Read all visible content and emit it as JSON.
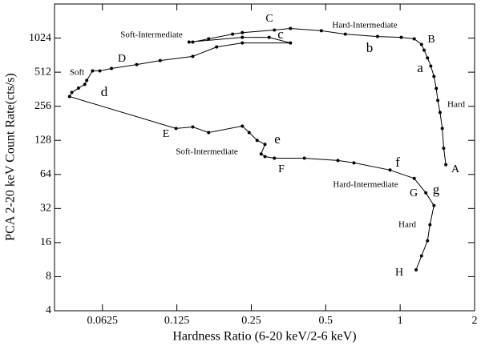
{
  "chart_data": {
    "type": "line",
    "xlabel": "Hardness Ratio (6-20 keV/2-6 keV)",
    "ylabel": "PCA 2-20 keV Count Rate(cts/s)",
    "xscale": "log",
    "yscale": "log",
    "xlim": [
      0.04,
      2
    ],
    "ylim": [
      4,
      2048
    ],
    "xticks": [
      0.0625,
      0.125,
      0.25,
      0.5,
      1,
      2
    ],
    "yticks": [
      4,
      8,
      16,
      32,
      64,
      128,
      256,
      512,
      1024
    ],
    "series": [
      {
        "color": "#000000",
        "x": [
          1.53,
          1.5,
          1.48,
          1.45,
          1.42,
          1.4,
          1.37,
          1.33,
          1.29,
          1.25,
          1.22,
          1.14,
          1.01,
          0.81,
          0.6,
          0.48,
          0.36,
          0.31,
          0.23,
          0.21,
          0.168,
          0.145,
          0.14,
          0.23,
          0.295,
          0.36,
          0.23,
          0.181,
          0.145,
          0.107,
          0.086,
          0.068,
          0.061,
          0.057,
          0.054,
          0.053,
          0.05,
          0.047,
          0.046,
          0.124,
          0.145,
          0.168,
          0.23,
          0.245,
          0.264,
          0.284,
          0.274,
          0.284,
          0.31,
          0.41,
          0.56,
          0.65,
          0.91,
          1.14,
          1.27,
          1.37,
          1.32,
          1.29,
          1.22,
          1.16
        ],
        "values": [
          78,
          109,
          163,
          226,
          288,
          368,
          470,
          580,
          684,
          801,
          900,
          1008,
          1040,
          1058,
          1110,
          1188,
          1247,
          1207,
          1144,
          1110,
          1008,
          944,
          944,
          1040,
          1040,
          928,
          928,
          855,
          706,
          648,
          598,
          552,
          526,
          526,
          433,
          399,
          370,
          339,
          312,
          163,
          168,
          150,
          171,
          150,
          128,
          118,
          97,
          92,
          89,
          89,
          85,
          81,
          70,
          59,
          44,
          34,
          23,
          16.6,
          12.2,
          9.2
        ]
      }
    ],
    "annotations": [
      "A",
      "B",
      "C",
      "D",
      "E",
      "F",
      "G",
      "H",
      "a",
      "b",
      "c",
      "d",
      "e",
      "f",
      "g",
      "Hard",
      "Hard-Intermediate",
      "Soft-Intermediate",
      "Soft",
      "Soft-Intermediate",
      "Hard-Intermediate",
      "Hard"
    ]
  }
}
